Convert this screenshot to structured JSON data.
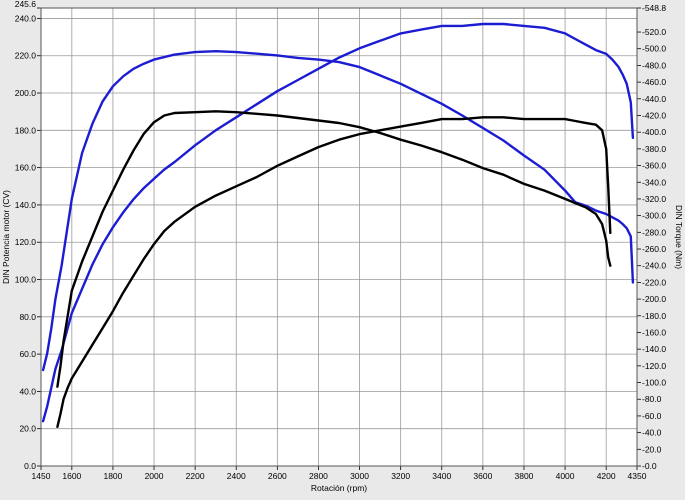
{
  "chart_data": {
    "type": "line",
    "xlabel": "Rotación (rpm)",
    "ylabel_left": "DIN Potencia motor (CV)",
    "ylabel_right": "DIN Torque (Nm)",
    "xlim": [
      1450,
      4350
    ],
    "ylim_left": [
      0,
      245.6
    ],
    "ylim_right": [
      0,
      548.8
    ],
    "x_ticks": [
      "1450",
      "1600",
      "1800",
      "2000",
      "2200",
      "2400",
      "2600",
      "2800",
      "3000",
      "3200",
      "3400",
      "3600",
      "3800",
      "4000",
      "4200",
      "4350"
    ],
    "y_left_ticks": [
      "0.0",
      "20.0",
      "40.0",
      "60.0",
      "80.0",
      "100.0",
      "120.0",
      "140.0",
      "160.0",
      "180.0",
      "200.0",
      "220.0",
      "240.0",
      "245.6"
    ],
    "y_right_ticks": [
      "0.0",
      "20.0",
      "40.0",
      "60.0",
      "80.0",
      "100.0",
      "120.0",
      "140.0",
      "160.0",
      "180.0",
      "200.0",
      "220.0",
      "240.0",
      "260.0",
      "280.0",
      "300.0",
      "320.0",
      "340.0",
      "360.0",
      "380.0",
      "400.0",
      "420.0",
      "440.0",
      "460.0",
      "480.0",
      "500.0",
      "520.0",
      "548.8"
    ],
    "grid": true,
    "colors": {
      "blue": "#1c1cd2",
      "black": "#000000"
    },
    "series": [
      {
        "axis": "left",
        "color": "#1c1cd2",
        "x": [
          1460,
          1480,
          1500,
          1520,
          1550,
          1575,
          1600,
          1650,
          1700,
          1750,
          1800,
          1850,
          1900,
          1950,
          2000,
          2050,
          2100,
          2200,
          2300,
          2400,
          2500,
          2600,
          2700,
          2800,
          2900,
          3000,
          3100,
          3200,
          3300,
          3400,
          3500,
          3600,
          3700,
          3800,
          3900,
          4000,
          4050,
          4100,
          4150,
          4200,
          4230,
          4260,
          4280,
          4300,
          4320,
          4330
        ],
        "y": [
          24,
          32,
          42,
          52,
          62,
          72,
          82,
          95,
          108,
          119,
          128,
          136,
          143,
          149,
          154,
          159,
          163,
          172,
          180,
          187,
          194,
          201,
          207,
          213,
          219,
          224,
          228,
          232,
          234,
          236,
          236,
          237,
          237,
          236,
          235,
          232,
          229,
          226,
          223,
          221,
          218,
          214,
          210,
          205,
          195,
          176
        ]
      },
      {
        "axis": "right",
        "color": "#1c1cd2",
        "x": [
          1460,
          1480,
          1500,
          1520,
          1550,
          1575,
          1600,
          1650,
          1700,
          1750,
          1800,
          1850,
          1900,
          1950,
          2000,
          2100,
          2200,
          2300,
          2400,
          2500,
          2600,
          2700,
          2800,
          2900,
          3000,
          3100,
          3200,
          3300,
          3400,
          3500,
          3600,
          3700,
          3800,
          3900,
          4000,
          4050,
          4100,
          4150,
          4200,
          4230,
          4260,
          4280,
          4300,
          4310,
          4320,
          4330
        ],
        "y": [
          115,
          135,
          165,
          200,
          240,
          280,
          320,
          375,
          410,
          437,
          455,
          467,
          476,
          482,
          487,
          493,
          496,
          497,
          496,
          494,
          492,
          489,
          487,
          484,
          478,
          468,
          458,
          446,
          434,
          420,
          405,
          390,
          372,
          355,
          330,
          316,
          312,
          306,
          302,
          298,
          294,
          290,
          285,
          280,
          275,
          220
        ]
      },
      {
        "axis": "left",
        "color": "#000000",
        "x": [
          1530,
          1545,
          1560,
          1580,
          1600,
          1650,
          1700,
          1750,
          1800,
          1850,
          1900,
          1950,
          2000,
          2050,
          2100,
          2200,
          2300,
          2400,
          2500,
          2600,
          2700,
          2800,
          2900,
          3000,
          3100,
          3200,
          3300,
          3400,
          3500,
          3600,
          3700,
          3800,
          3900,
          4000,
          4050,
          4100,
          4150,
          4180,
          4200,
          4210,
          4220
        ],
        "y": [
          21,
          28,
          36,
          42,
          47,
          56,
          65,
          74,
          83,
          93,
          102,
          111,
          119,
          126,
          131,
          139,
          145,
          150,
          155,
          161,
          166,
          171,
          175,
          178,
          180,
          182,
          184,
          186,
          186,
          187,
          187,
          186,
          186,
          186,
          185,
          184,
          183,
          180,
          170,
          150,
          125
        ]
      },
      {
        "axis": "right",
        "color": "#000000",
        "x": [
          1530,
          1545,
          1560,
          1580,
          1600,
          1650,
          1700,
          1750,
          1800,
          1850,
          1900,
          1950,
          2000,
          2050,
          2100,
          2200,
          2300,
          2400,
          2500,
          2600,
          2700,
          2800,
          2900,
          3000,
          3100,
          3200,
          3300,
          3400,
          3500,
          3600,
          3700,
          3800,
          3900,
          4000,
          4050,
          4100,
          4150,
          4180,
          4200,
          4210,
          4220
        ],
        "y": [
          95,
          120,
          150,
          180,
          210,
          245,
          275,
          305,
          330,
          355,
          378,
          398,
          412,
          420,
          423,
          424,
          425,
          424,
          422,
          420,
          417,
          414,
          411,
          406,
          399,
          391,
          384,
          376,
          367,
          357,
          349,
          338,
          330,
          320,
          315,
          310,
          302,
          290,
          270,
          250,
          240
        ]
      }
    ]
  }
}
